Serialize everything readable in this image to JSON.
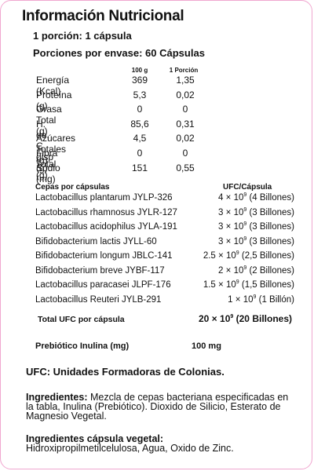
{
  "title": "Información Nutricional",
  "serving": "1 porción: 1 cápsula",
  "servings_per_container": "Porciones por envase: 60 Cápsulas",
  "nutrition": {
    "col_100g": "100 g",
    "col_portion": "1 Porción",
    "rows": [
      {
        "label": "Energía (Kcal)",
        "per100": "369",
        "portion": "1,35"
      },
      {
        "label": "Proteína (g)",
        "per100": "5,3",
        "portion": "0,02"
      },
      {
        "label": "Grasa Total (g)",
        "per100": "0",
        "portion": "0"
      },
      {
        "label": "H. de. C disp (g)",
        "per100": "85,6",
        "portion": "0,31"
      },
      {
        "label": "Azúcares Totales (g)",
        "per100": "4,5",
        "portion": "0,02"
      },
      {
        "label": "Fibra Total (g)",
        "per100": "0",
        "portion": "0"
      },
      {
        "label": "Sodio (mg)",
        "per100": "151",
        "portion": "0,55"
      }
    ]
  },
  "strains": {
    "header_name": "Cepas por cápsulas",
    "header_value": "UFC/Cápsula",
    "rows": [
      {
        "name": "Lactobacillus plantarum JYLP-326",
        "coef": "4",
        "exp": "9",
        "billions": "(4 Billones)"
      },
      {
        "name": "Lactobacillus rhamnosus JYLR-127",
        "coef": "3",
        "exp": "9",
        "billions": "(3 Billones)"
      },
      {
        "name": "Lactobacillus acidophilus JYLA-191",
        "coef": "3",
        "exp": "9",
        "billions": "(3 Billones)"
      },
      {
        "name": "Bifidobacterium lactis JYLL-60",
        "coef": "3",
        "exp": "9",
        "billions": "(3 Billones)"
      },
      {
        "name": "Bifidobacterium longum JBLC-141",
        "coef": "2.5",
        "exp": "9",
        "billions": "(2,5 Billones)"
      },
      {
        "name": "Bifidobacterium breve JYBF-117",
        "coef": "2",
        "exp": "9",
        "billions": "(2 Billones)"
      },
      {
        "name": "Lactobacillus paracasei JLPF-176",
        "coef": "1.5",
        "exp": "9",
        "billions": "(1,5 Billones)"
      },
      {
        "name": "Lactobacillus Reuteri JYLB-291",
        "coef": "1",
        "exp": "9",
        "billions": "(1 Billón)"
      }
    ],
    "total_label": "Total UFC por cápsula",
    "total_coef": "20",
    "total_exp": "9",
    "total_billions": "(20 Billones)",
    "times": "×",
    "ten": "10"
  },
  "prebiotic_label": "Prebiótico Inulina (mg)",
  "prebiotic_value": "100 mg",
  "ufc_note": "UFC: Unidades Formadoras de Colonias.",
  "ingredients_label": "Ingredientes:",
  "ingredients_text": "Mezcla de cepas bacteriana especificadas en la tabla, Inulina (Prebiótico). Dioxido de Silicio, Esterato de Magnesio Vegetal.",
  "capsule_label": "Ingredientes cápsula vegetal:",
  "capsule_text": "Hidroxipropilmetilcelulosa, Agua, Oxido de Zinc.",
  "colors": {
    "border": "#f0a6cf",
    "text": "#111111"
  }
}
